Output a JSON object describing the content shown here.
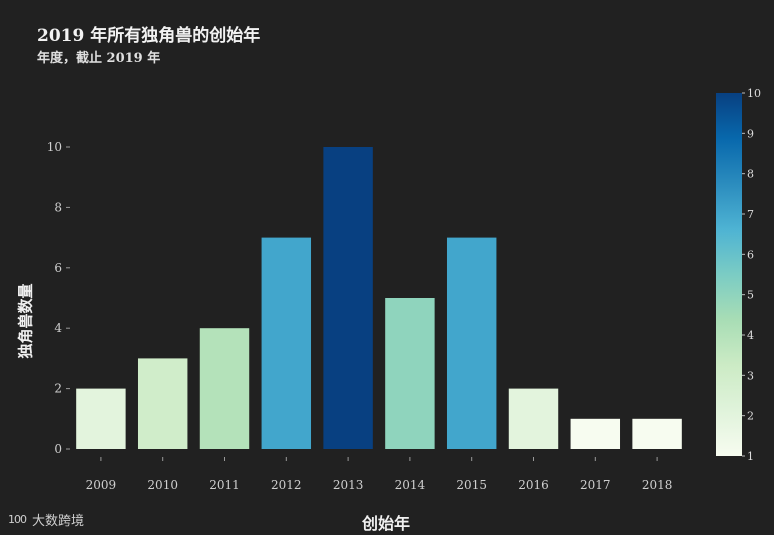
{
  "chart_data": {
    "type": "bar",
    "title": "2019 年所有独角兽的创始年",
    "subtitle": "年度，截止 2019 年",
    "xlabel": "创始年",
    "ylabel": "独角兽数量",
    "categories": [
      "2009",
      "2010",
      "2011",
      "2012",
      "2013",
      "2014",
      "2015",
      "2016",
      "2017",
      "2018"
    ],
    "values": [
      2,
      3,
      4,
      7,
      10,
      5,
      7,
      2,
      1,
      1
    ],
    "ylim": [
      0,
      10
    ],
    "yticks": [
      "0",
      "2",
      "4",
      "6",
      "8",
      "10"
    ],
    "grid": false,
    "colorbar": {
      "range": [
        1,
        10
      ],
      "ticks": [
        "1",
        "2",
        "3",
        "4",
        "5",
        "6",
        "7",
        "8",
        "9",
        "10"
      ],
      "colors": [
        "#f7fcf0",
        "#e0f3db",
        "#ccebc5",
        "#a8ddb5",
        "#7bccc4",
        "#4eb3d3",
        "#2b8cbe",
        "#0868ac",
        "#084081"
      ]
    }
  },
  "watermark": {
    "logo": "100",
    "text": "大数跨境"
  }
}
